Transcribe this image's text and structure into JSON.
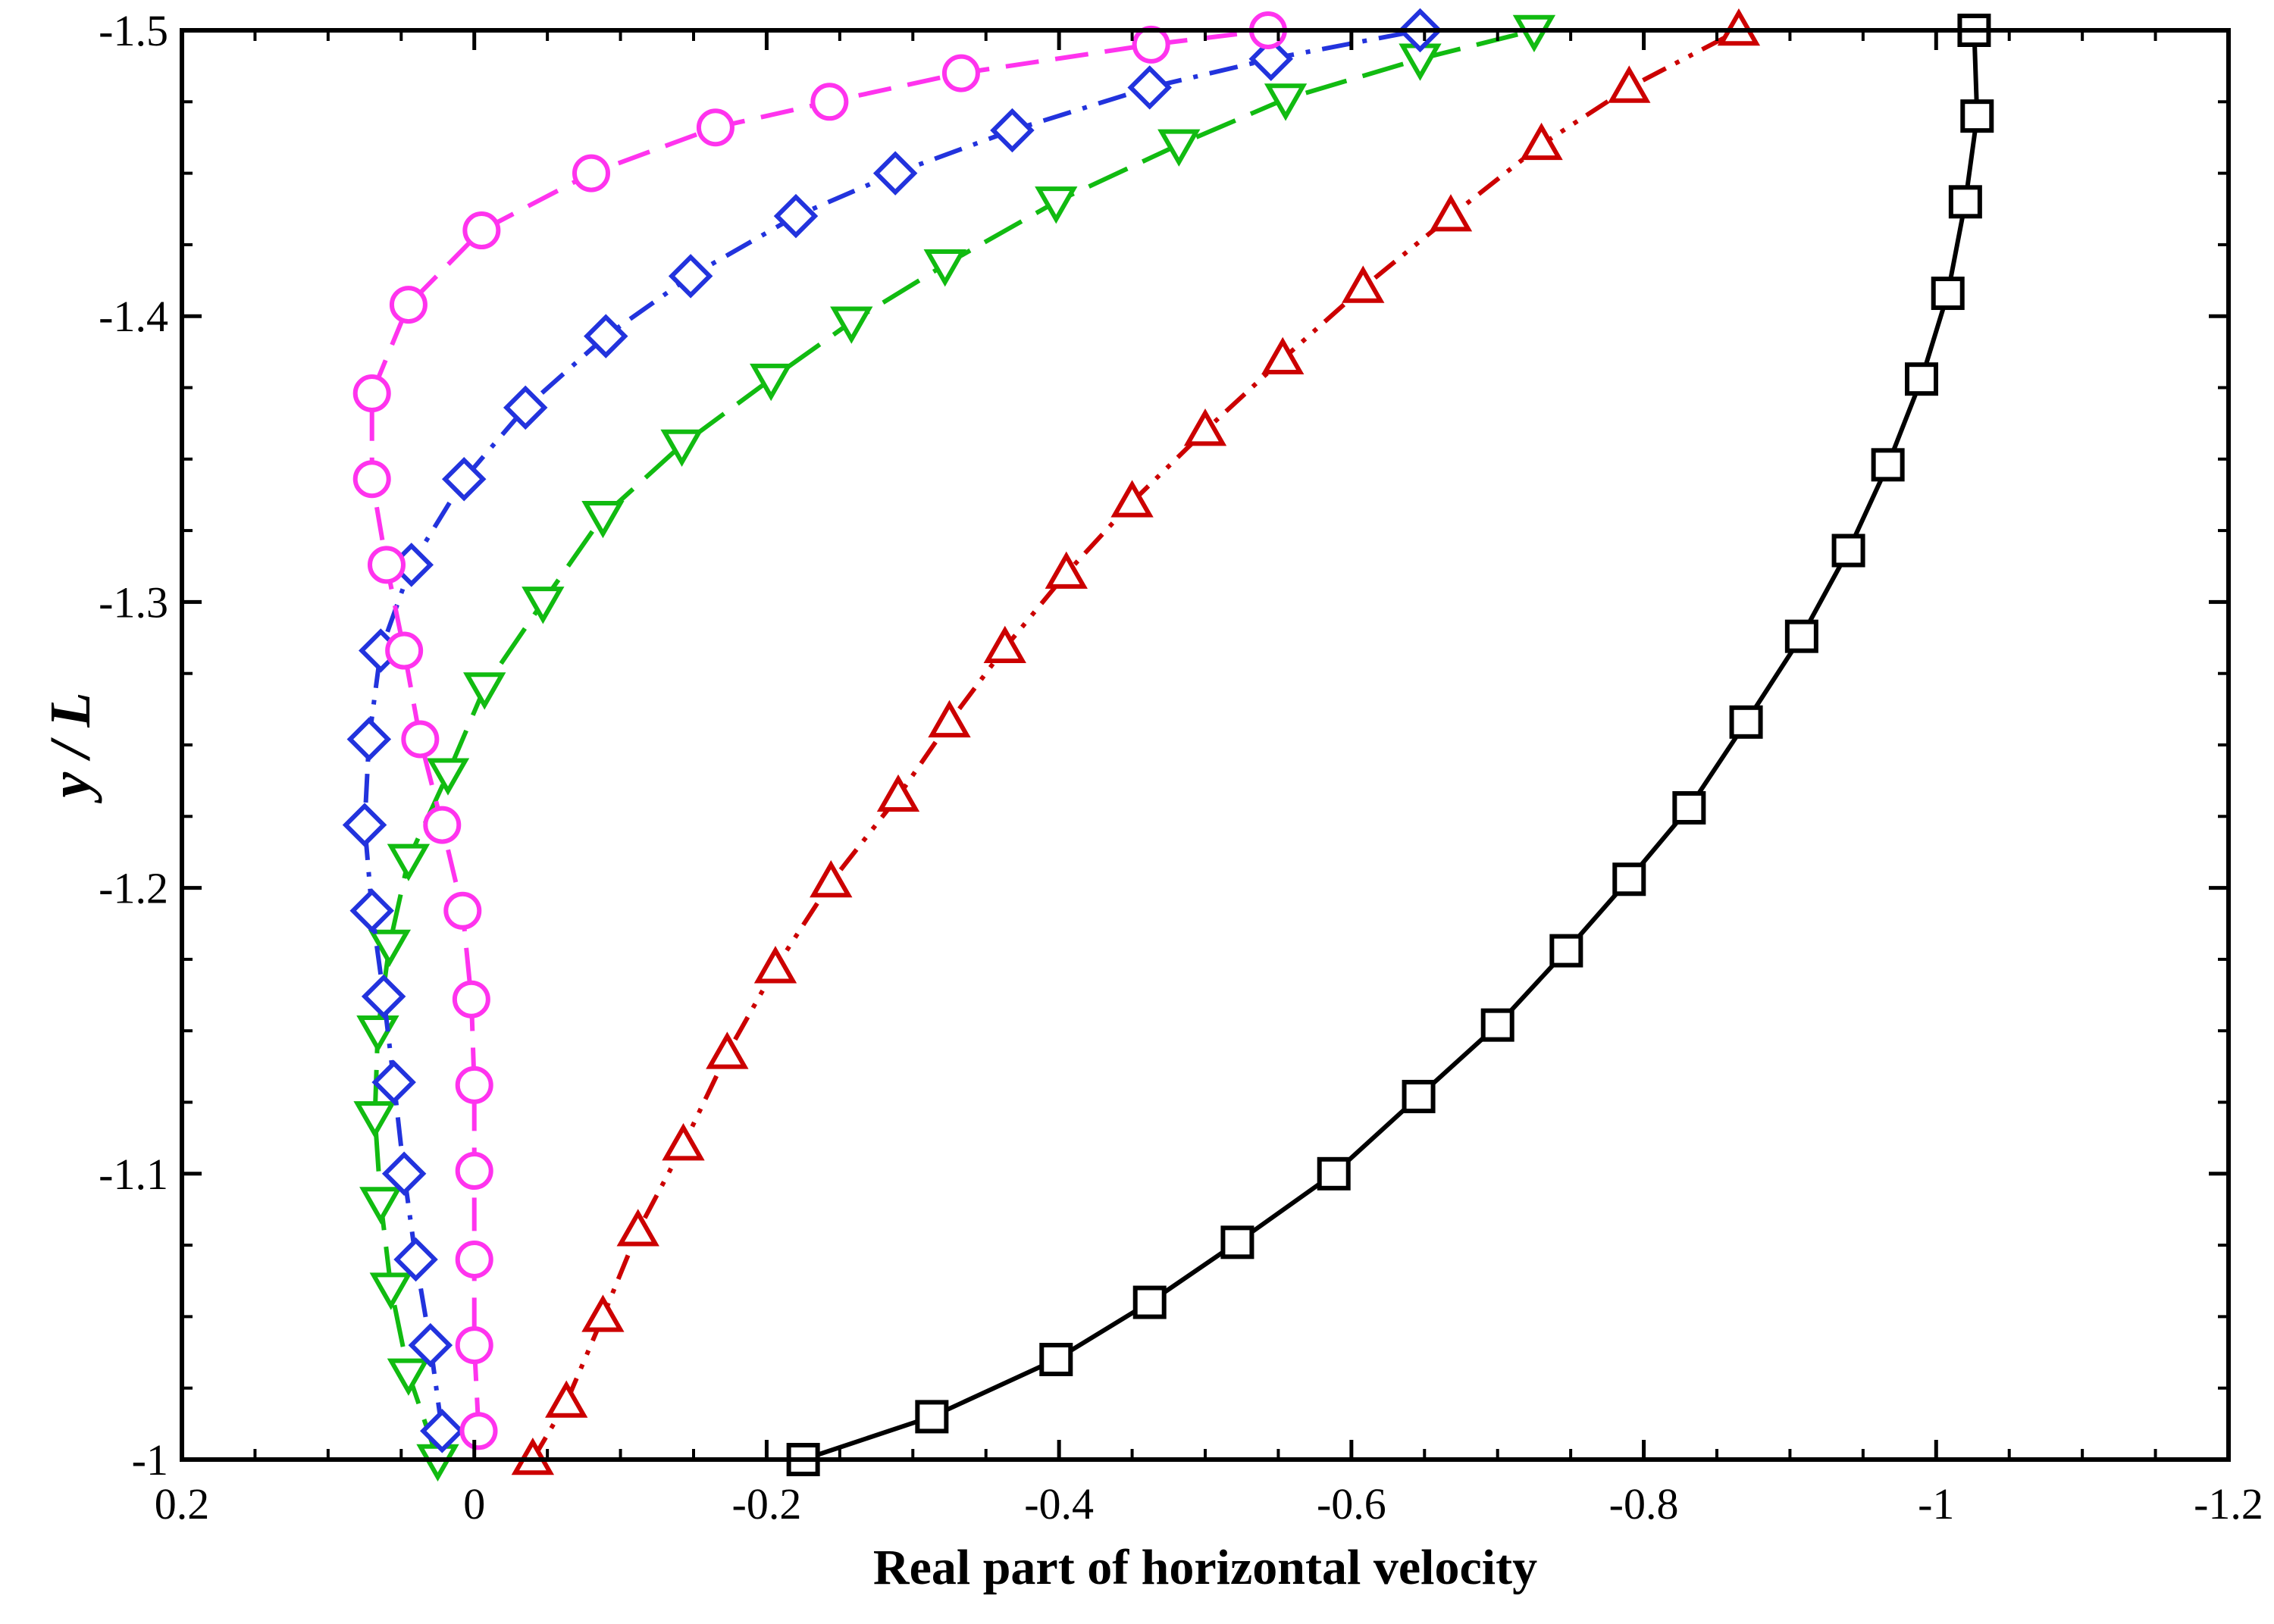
{
  "chart_data": {
    "type": "line",
    "title": "",
    "xlabel": "Real part of horizontal velocity",
    "ylabel": "y / L",
    "xlim": [
      0.2,
      -1.2
    ],
    "ylim": [
      -1,
      -1.5
    ],
    "x_ticks": [
      0.2,
      0,
      -0.2,
      -0.4,
      -0.6,
      -0.8,
      -1,
      -1.2
    ],
    "x_tick_labels": [
      "0.2",
      "0",
      "-0.2",
      "-0.4",
      "-0.6",
      "-0.8",
      "-1",
      "-1.2"
    ],
    "y_ticks": [
      -1,
      -1.1,
      -1.2,
      -1.3,
      -1.4,
      -1.5
    ],
    "y_tick_labels": [
      "-1",
      "-1.1",
      "-1.2",
      "-1.3",
      "-1.4",
      "-1.5"
    ],
    "grid": false,
    "series": [
      {
        "name": "black-squares",
        "color": "#000000",
        "marker": "square",
        "dash": "solid",
        "points": [
          [
            -0.225,
            -1.0
          ],
          [
            -0.313,
            -1.015
          ],
          [
            -0.398,
            -1.035
          ],
          [
            -0.462,
            -1.055
          ],
          [
            -0.522,
            -1.076
          ],
          [
            -0.588,
            -1.1
          ],
          [
            -0.646,
            -1.127
          ],
          [
            -0.7,
            -1.152
          ],
          [
            -0.747,
            -1.178
          ],
          [
            -0.79,
            -1.203
          ],
          [
            -0.831,
            -1.228
          ],
          [
            -0.87,
            -1.258
          ],
          [
            -0.908,
            -1.288
          ],
          [
            -0.94,
            -1.318
          ],
          [
            -0.967,
            -1.348
          ],
          [
            -0.99,
            -1.378
          ],
          [
            -1.008,
            -1.408
          ],
          [
            -1.02,
            -1.44
          ],
          [
            -1.028,
            -1.47
          ],
          [
            -1.026,
            -1.5
          ]
        ]
      },
      {
        "name": "red-triangles",
        "color": "#cc0000",
        "marker": "triangle-up",
        "dash": "dash-dot-dot",
        "points": [
          [
            -0.04,
            -1.0
          ],
          [
            -0.063,
            -1.02
          ],
          [
            -0.088,
            -1.05
          ],
          [
            -0.112,
            -1.08
          ],
          [
            -0.143,
            -1.11
          ],
          [
            -0.173,
            -1.142
          ],
          [
            -0.206,
            -1.172
          ],
          [
            -0.244,
            -1.202
          ],
          [
            -0.29,
            -1.232
          ],
          [
            -0.325,
            -1.258
          ],
          [
            -0.363,
            -1.284
          ],
          [
            -0.405,
            -1.31
          ],
          [
            -0.45,
            -1.335
          ],
          [
            -0.5,
            -1.36
          ],
          [
            -0.553,
            -1.385
          ],
          [
            -0.608,
            -1.41
          ],
          [
            -0.668,
            -1.435
          ],
          [
            -0.73,
            -1.46
          ],
          [
            -0.79,
            -1.48
          ],
          [
            -0.865,
            -1.5
          ]
        ]
      },
      {
        "name": "green-down-triangles",
        "color": "#11bb11",
        "marker": "triangle-down",
        "dash": "long-dash",
        "points": [
          [
            0.025,
            -1.0
          ],
          [
            0.045,
            -1.03
          ],
          [
            0.057,
            -1.06
          ],
          [
            0.064,
            -1.09
          ],
          [
            0.068,
            -1.12
          ],
          [
            0.066,
            -1.15
          ],
          [
            0.058,
            -1.18
          ],
          [
            0.045,
            -1.21
          ],
          [
            0.018,
            -1.24
          ],
          [
            -0.007,
            -1.27
          ],
          [
            -0.047,
            -1.3
          ],
          [
            -0.088,
            -1.33
          ],
          [
            -0.142,
            -1.355
          ],
          [
            -0.203,
            -1.378
          ],
          [
            -0.258,
            -1.398
          ],
          [
            -0.322,
            -1.418
          ],
          [
            -0.398,
            -1.44
          ],
          [
            -0.482,
            -1.46
          ],
          [
            -0.555,
            -1.476
          ],
          [
            -0.647,
            -1.49
          ],
          [
            -0.725,
            -1.5
          ]
        ]
      },
      {
        "name": "blue-diamonds",
        "color": "#2233dd",
        "marker": "diamond",
        "dash": "dash-dot",
        "points": [
          [
            0.022,
            -1.01
          ],
          [
            0.03,
            -1.04
          ],
          [
            0.04,
            -1.07
          ],
          [
            0.048,
            -1.1
          ],
          [
            0.055,
            -1.132
          ],
          [
            0.062,
            -1.162
          ],
          [
            0.07,
            -1.192
          ],
          [
            0.075,
            -1.222
          ],
          [
            0.072,
            -1.252
          ],
          [
            0.064,
            -1.283
          ],
          [
            0.043,
            -1.313
          ],
          [
            0.007,
            -1.343
          ],
          [
            -0.035,
            -1.368
          ],
          [
            -0.09,
            -1.393
          ],
          [
            -0.148,
            -1.414
          ],
          [
            -0.22,
            -1.435
          ],
          [
            -0.288,
            -1.45
          ],
          [
            -0.368,
            -1.465
          ],
          [
            -0.462,
            -1.48
          ],
          [
            -0.545,
            -1.49
          ],
          [
            -0.647,
            -1.5
          ]
        ]
      },
      {
        "name": "magenta-circles",
        "color": "#ff33ee",
        "marker": "circle",
        "dash": "dash",
        "points": [
          [
            -0.003,
            -1.01
          ],
          [
            0.0,
            -1.04
          ],
          [
            0.0,
            -1.07
          ],
          [
            0.0,
            -1.101
          ],
          [
            0.0,
            -1.131
          ],
          [
            0.002,
            -1.161
          ],
          [
            0.008,
            -1.192
          ],
          [
            0.022,
            -1.222
          ],
          [
            0.037,
            -1.252
          ],
          [
            0.048,
            -1.283
          ],
          [
            0.06,
            -1.313
          ],
          [
            0.07,
            -1.343
          ],
          [
            0.07,
            -1.373
          ],
          [
            0.045,
            -1.404
          ],
          [
            -0.005,
            -1.43
          ],
          [
            -0.08,
            -1.45
          ],
          [
            -0.165,
            -1.466
          ],
          [
            -0.243,
            -1.475
          ],
          [
            -0.333,
            -1.485
          ],
          [
            -0.463,
            -1.495
          ],
          [
            -0.543,
            -1.5
          ]
        ]
      }
    ]
  }
}
